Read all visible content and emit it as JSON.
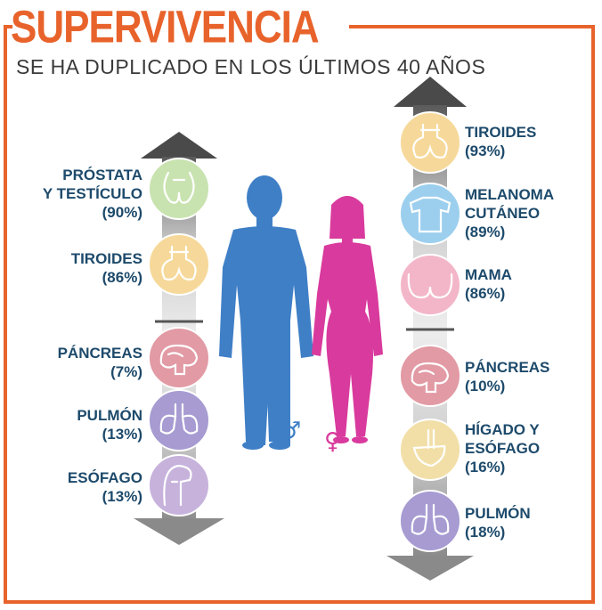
{
  "header": {
    "title": "SUPERVIVENCIA",
    "subtitle": "SE HA DUPLICADO EN LOS ÚLTIMOS 40 AÑOS"
  },
  "men": {
    "symbol": "♂",
    "up": [
      {
        "line1": "PRÓSTATA",
        "line2": "Y TESTÍCULO",
        "pct": "(90%)",
        "icon": "prostate-testicle-icon",
        "color": "#c9e3b0"
      },
      {
        "line1": "TIROIDES",
        "pct": "(86%)",
        "icon": "thyroid-icon",
        "color": "#f6d99a"
      }
    ],
    "down": [
      {
        "line1": "PÁNCREAS",
        "pct": "(7%)",
        "icon": "pancreas-icon",
        "color": "#e29aa4"
      },
      {
        "line1": "PULMÓN",
        "pct": "(13%)",
        "icon": "lung-icon",
        "color": "#a79bd2"
      },
      {
        "line1": "ESÓFAGO",
        "pct": "(13%)",
        "icon": "esophagus-icon",
        "color": "#c7b2dc"
      }
    ]
  },
  "women": {
    "symbol": "♀",
    "up": [
      {
        "line1": "TIROIDES",
        "pct": "(93%)",
        "icon": "thyroid-icon",
        "color": "#f6d99a"
      },
      {
        "line1": "MELANOMA",
        "line2": "CUTÁNEO",
        "pct": "(89%)",
        "icon": "skin-melanoma-icon",
        "color": "#9ccfee"
      },
      {
        "line1": "MAMA",
        "pct": "(86%)",
        "icon": "breast-icon",
        "color": "#f3b6c9"
      }
    ],
    "down": [
      {
        "line1": "PÁNCREAS",
        "pct": "(10%)",
        "icon": "pancreas-icon",
        "color": "#e29aa4"
      },
      {
        "line1": "HÍGADO Y",
        "line2": "ESÓFAGO",
        "pct": "(16%)",
        "icon": "liver-esophagus-icon",
        "color": "#f2dfa8"
      },
      {
        "line1": "PULMÓN",
        "pct": "(18%)",
        "icon": "lung-icon",
        "color": "#a79bd2"
      }
    ]
  },
  "colors": {
    "accent": "#e8632b",
    "male": "#3f7fc6",
    "female": "#d93a9d",
    "label": "#1d4a6b",
    "arrow_top": "#4a4a4a",
    "arrow_bottom": "#8a8a8a"
  }
}
